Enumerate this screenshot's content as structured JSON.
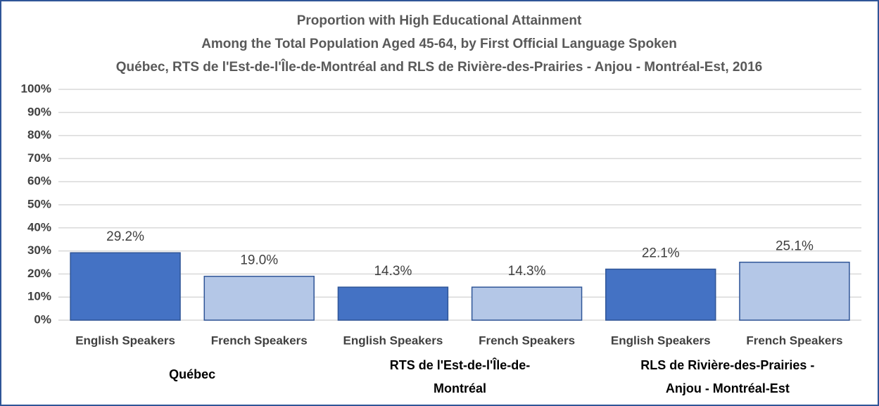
{
  "chart_data": {
    "type": "bar",
    "title": "Proportion with High Educational Attainment",
    "subtitle": [
      "Among the Total Population Aged 45-64, by First Official Language Spoken",
      "Québec, RTS de l'Est-de-l'Île-de-Montréal and RLS de Rivière-des-Prairies - Anjou - Montréal-Est, 2016"
    ],
    "categories": [
      "English Speakers",
      "French Speakers",
      "English Speakers",
      "French Speakers",
      "English Speakers",
      "French Speakers"
    ],
    "groups": [
      [
        "Québec"
      ],
      [
        "RTS de l'Est-de-l'Île-de-",
        "Montréal"
      ],
      [
        "RLS de Rivière-des-Prairies -",
        "Anjou - Montréal-Est"
      ]
    ],
    "values": [
      29.2,
      19.0,
      14.3,
      14.3,
      22.1,
      25.1
    ],
    "value_labels": [
      "29.2%",
      "19.0%",
      "14.3%",
      "14.3%",
      "22.1%",
      "25.1%"
    ],
    "colors": [
      "#4472c4",
      "#b4c7e7",
      "#4472c4",
      "#b4c7e7",
      "#4472c4",
      "#b4c7e7"
    ],
    "ylim": [
      0,
      100
    ],
    "yticks": [
      {
        "value": 0,
        "label": "0%"
      },
      {
        "value": 10,
        "label": "10%"
      },
      {
        "value": 20,
        "label": "20%"
      },
      {
        "value": 30,
        "label": "30%"
      },
      {
        "value": 40,
        "label": "40%"
      },
      {
        "value": 50,
        "label": "50%"
      },
      {
        "value": 60,
        "label": "60%"
      },
      {
        "value": 70,
        "label": "70%"
      },
      {
        "value": 80,
        "label": "80%"
      },
      {
        "value": 90,
        "label": "90%"
      },
      {
        "value": 100,
        "label": "100%"
      }
    ],
    "grid": true
  }
}
